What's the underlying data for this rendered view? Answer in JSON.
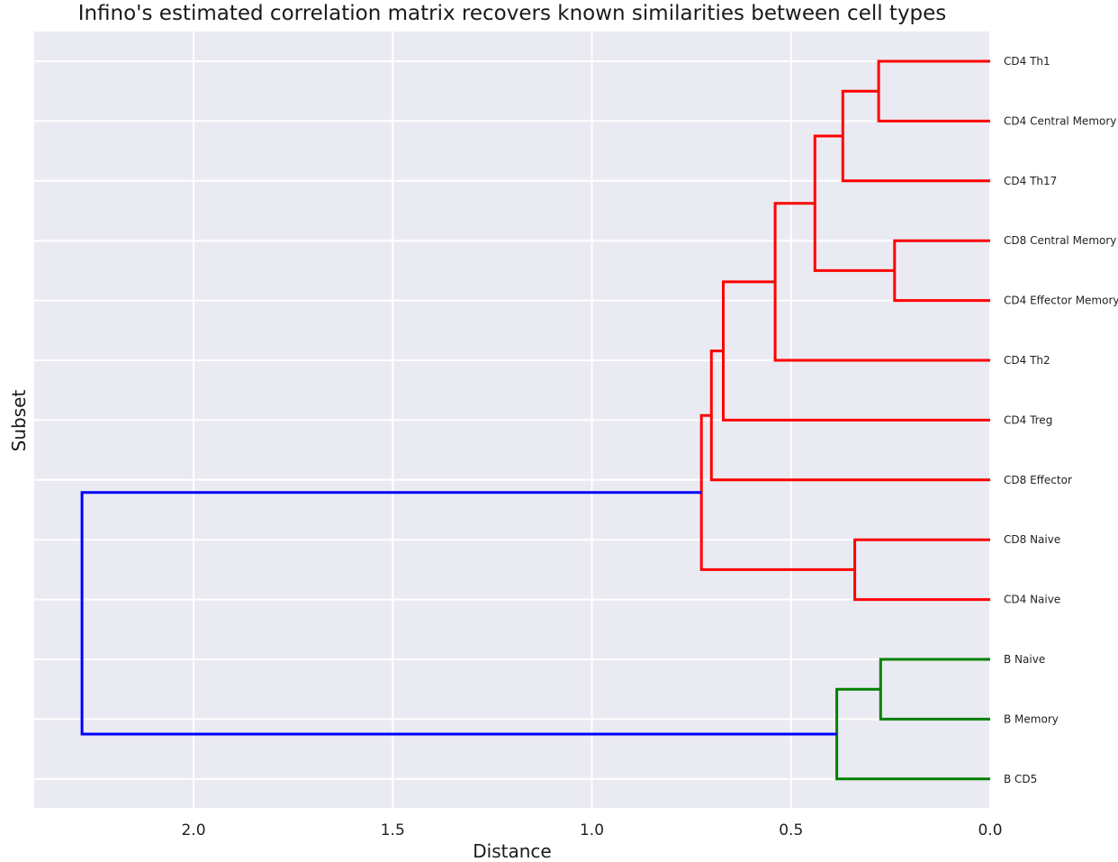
{
  "chart_data": {
    "type": "dendrogram",
    "title": "Infino's estimated correlation matrix recovers known similarities between cell types",
    "xlabel": "Distance",
    "ylabel": "Subset",
    "xlim": [
      2.4,
      0.0
    ],
    "x_ticks": [
      "2.0",
      "1.5",
      "1.0",
      "0.5",
      "0.0"
    ],
    "x_tick_values": [
      2.0,
      1.5,
      1.0,
      0.5,
      0.0
    ],
    "grid": true,
    "background": "#eaeaf2",
    "leaves": [
      "CD4 Th1",
      "CD4 Central Memory",
      "CD4 Th17",
      "CD8 Central Memory",
      "CD4 Effector Memory",
      "CD4 Th2",
      "CD4 Treg",
      "CD8 Effector",
      "CD8 Naive",
      "CD4 Naive",
      "B Naive",
      "B Memory",
      "B CD5"
    ],
    "merges": [
      {
        "left": "CD4 Th1",
        "right": "CD4 Central Memory",
        "distance": 0.28,
        "color": "#ff0000"
      },
      {
        "left": "m0",
        "right": "CD4 Th17",
        "distance": 0.37,
        "color": "#ff0000"
      },
      {
        "left": "CD8 Central Memory",
        "right": "CD4 Effector Memory",
        "distance": 0.24,
        "color": "#ff0000"
      },
      {
        "left": "m1",
        "right": "m2",
        "distance": 0.44,
        "color": "#ff0000"
      },
      {
        "left": "m3",
        "right": "CD4 Th2",
        "distance": 0.54,
        "color": "#ff0000"
      },
      {
        "left": "m4",
        "right": "CD4 Treg",
        "distance": 0.67,
        "color": "#ff0000"
      },
      {
        "left": "m5",
        "right": "CD8 Effector",
        "distance": 0.7,
        "color": "#ff0000"
      },
      {
        "left": "CD8 Naive",
        "right": "CD4 Naive",
        "distance": 0.34,
        "color": "#ff0000"
      },
      {
        "left": "m6",
        "right": "m7",
        "distance": 0.725,
        "color": "#ff0000"
      },
      {
        "left": "B Naive",
        "right": "B Memory",
        "distance": 0.275,
        "color": "#008000"
      },
      {
        "left": "m9",
        "right": "B CD5",
        "distance": 0.385,
        "color": "#008000"
      },
      {
        "left": "m8",
        "right": "m10",
        "distance": 2.28,
        "color": "#0000ff"
      }
    ]
  }
}
